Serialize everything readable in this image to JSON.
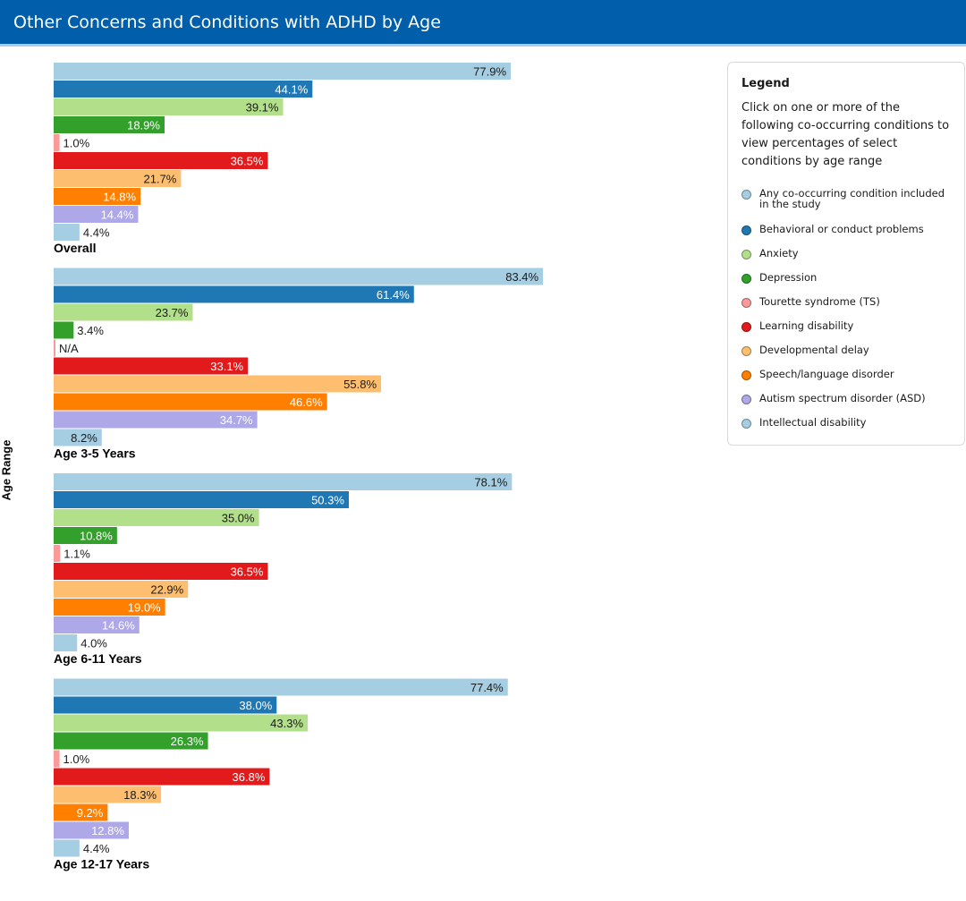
{
  "header": {
    "title": "Other Concerns and Conditions with ADHD by Age"
  },
  "chart_data": {
    "type": "bar",
    "orientation": "horizontal",
    "title": "Other Concerns and Conditions with ADHD by Age",
    "ylabel": "Age Range",
    "xlim": [
      0,
      100
    ],
    "grid": false,
    "legend_position": "right",
    "series": [
      {
        "name": "Any co-occurring condition included in the study",
        "color": "#a6cee3"
      },
      {
        "name": "Behavioral or conduct problems",
        "color": "#1f78b4"
      },
      {
        "name": "Anxiety",
        "color": "#b2df8a"
      },
      {
        "name": "Depression",
        "color": "#33a02c"
      },
      {
        "name": "Tourette syndrome (TS)",
        "color": "#fb9a99"
      },
      {
        "name": "Learning disability",
        "color": "#e31a1c"
      },
      {
        "name": "Developmental delay",
        "color": "#fdbf6f"
      },
      {
        "name": "Speech/language disorder",
        "color": "#ff7f00"
      },
      {
        "name": "Autism spectrum disorder (ASD)",
        "color": "#aea8e8"
      },
      {
        "name": "Intellectual disability",
        "color": "#a6cee3"
      }
    ],
    "groups": [
      {
        "label": "Overall",
        "values": [
          77.9,
          44.1,
          39.1,
          18.9,
          1.0,
          36.5,
          21.7,
          14.8,
          14.4,
          4.4
        ],
        "labels": [
          "77.9%",
          "44.1%",
          "39.1%",
          "18.9%",
          "1.0%",
          "36.5%",
          "21.7%",
          "14.8%",
          "14.4%",
          "4.4%"
        ]
      },
      {
        "label": "Age 3-5 Years",
        "values": [
          83.4,
          61.4,
          23.7,
          3.4,
          null,
          33.1,
          55.8,
          46.6,
          34.7,
          8.2
        ],
        "labels": [
          "83.4%",
          "61.4%",
          "23.7%",
          "3.4%",
          "N/A",
          "33.1%",
          "55.8%",
          "46.6%",
          "34.7%",
          "8.2%"
        ]
      },
      {
        "label": "Age 6-11 Years",
        "values": [
          78.1,
          50.3,
          35.0,
          10.8,
          1.1,
          36.5,
          22.9,
          19.0,
          14.6,
          4.0
        ],
        "labels": [
          "78.1%",
          "50.3%",
          "35.0%",
          "10.8%",
          "1.1%",
          "36.5%",
          "22.9%",
          "19.0%",
          "14.6%",
          "4.0%"
        ]
      },
      {
        "label": "Age 12-17 Years",
        "values": [
          77.4,
          38.0,
          43.3,
          26.3,
          1.0,
          36.8,
          18.3,
          9.2,
          12.8,
          4.4
        ],
        "labels": [
          "77.4%",
          "38.0%",
          "43.3%",
          "26.3%",
          "1.0%",
          "36.8%",
          "18.3%",
          "9.2%",
          "12.8%",
          "4.4%"
        ]
      }
    ]
  },
  "legend": {
    "title": "Legend",
    "description": "Click on one or more of the following co-occurring conditions to view percentages of select conditions by age range"
  }
}
